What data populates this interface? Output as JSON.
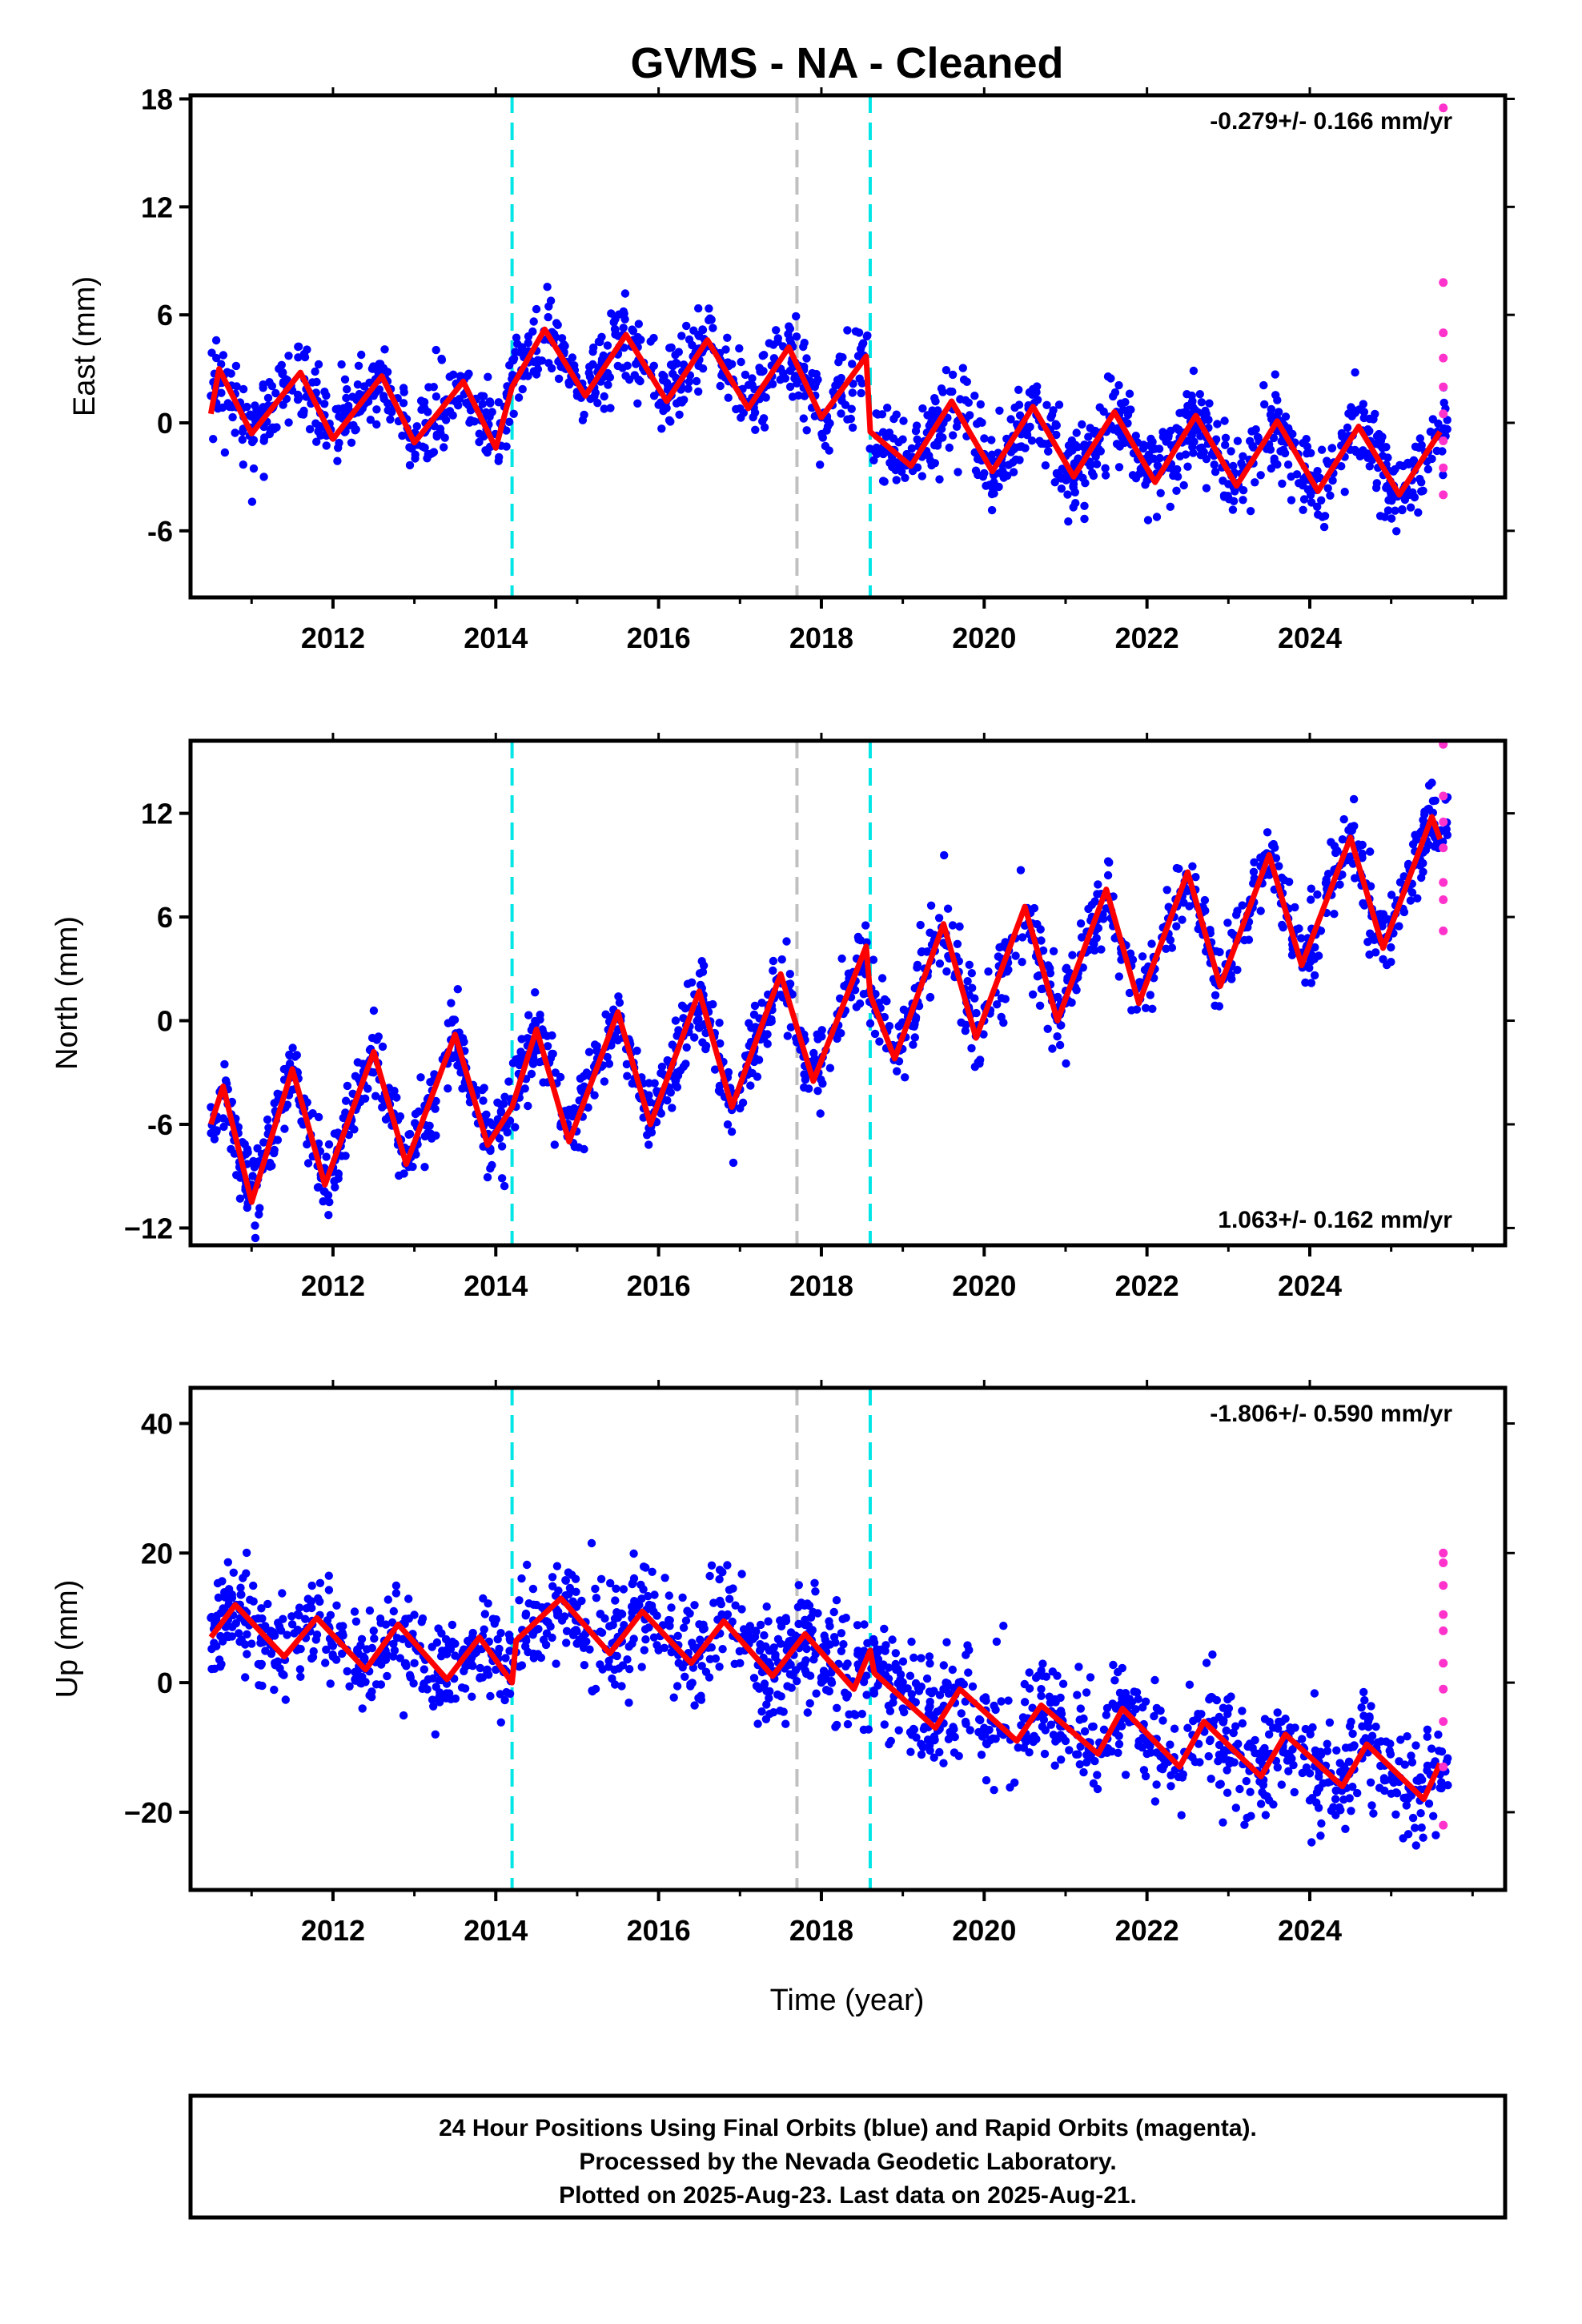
{
  "chart_data": [
    {
      "type": "scatter",
      "title": "GVMS  - NA - Cleaned",
      "component": "east",
      "ylabel": "East (mm)",
      "xlabel": "",
      "rate_text": "-0.279+/- 0.166 mm/yr",
      "rate_position": "top-right",
      "xlim": [
        2010.25,
        2026.4
      ],
      "ylim": [
        -9.7,
        18.2
      ],
      "xticks": [
        2012,
        2014,
        2016,
        2018,
        2020,
        2022,
        2024
      ],
      "xtick_labels": [
        "2012",
        "2014",
        "2016",
        "2018",
        "2020",
        "2022",
        "2024"
      ],
      "yticks": [
        18,
        12,
        6,
        0,
        -6
      ],
      "ytick_labels": [
        "18",
        "12",
        "6",
        "0",
        "-6"
      ],
      "grid": false,
      "series": [
        {
          "role": "final-orbits",
          "color": "#0000ff",
          "marker": "dot",
          "x": [
            2010.5,
            2011.0,
            2011.5,
            2012.0,
            2012.5,
            2013.0,
            2013.5,
            2014.0,
            2014.5,
            2015.0,
            2015.5,
            2016.0,
            2016.5,
            2017.0,
            2017.5,
            2018.0,
            2018.5,
            2019.0,
            2019.5,
            2020.0,
            2020.5,
            2021.0,
            2021.5,
            2022.0,
            2022.5,
            2023.0,
            2023.5,
            2024.0,
            2024.5,
            2025.0,
            2025.5
          ],
          "y": [
            1.5,
            -0.5,
            1.8,
            -0.8,
            1.5,
            -1.0,
            1.2,
            -1.2,
            4.0,
            1.5,
            3.8,
            1.0,
            3.5,
            0.8,
            3.0,
            0.3,
            2.2,
            -2.3,
            0.0,
            -2.8,
            -0.2,
            -3.0,
            -0.5,
            -3.2,
            -1.0,
            -3.4,
            -1.2,
            -3.8,
            -1.5,
            -4.0,
            -2.0
          ]
        },
        {
          "role": "model-fit",
          "color": "#ff0000",
          "x": [
            2010.5,
            2010.6,
            2011.0,
            2011.6,
            2012.0,
            2012.6,
            2013.0,
            2013.6,
            2014.0,
            2014.2,
            2014.6,
            2015.1,
            2015.6,
            2016.1,
            2016.6,
            2017.1,
            2017.6,
            2018.0,
            2018.55,
            2018.6,
            2019.1,
            2019.6,
            2020.1,
            2020.6,
            2021.1,
            2021.6,
            2022.1,
            2022.6,
            2023.1,
            2023.6,
            2024.1,
            2024.6,
            2025.1,
            2025.6
          ],
          "y": [
            0.5,
            3.0,
            -0.6,
            2.8,
            -0.9,
            2.6,
            -1.1,
            2.3,
            -1.4,
            2.0,
            5.2,
            1.5,
            4.9,
            1.2,
            4.6,
            0.8,
            4.2,
            0.3,
            3.7,
            -0.5,
            -2.4,
            1.2,
            -2.7,
            0.9,
            -3.0,
            0.6,
            -3.3,
            0.4,
            -3.5,
            0.1,
            -3.8,
            -0.2,
            -4.0,
            -0.5
          ]
        },
        {
          "role": "rapid-orbits",
          "color": "#ff33cc",
          "marker": "dot",
          "x": [
            2025.64,
            2025.64,
            2025.64,
            2025.64,
            2025.64,
            2025.64,
            2025.64,
            2025.64,
            2025.64
          ],
          "y": [
            17.5,
            7.8,
            5.0,
            3.6,
            2.0,
            0.5,
            -1.0,
            -2.5,
            -4.0
          ]
        }
      ],
      "vlines": [
        {
          "x": 2014.2,
          "color": "#00e5e5",
          "style": "dashed"
        },
        {
          "x": 2017.7,
          "color": "#c0c0c0",
          "style": "dashed"
        },
        {
          "x": 2018.6,
          "color": "#00e5e5",
          "style": "dashed"
        }
      ]
    },
    {
      "type": "scatter",
      "component": "north",
      "ylabel": "North (mm)",
      "xlabel": "",
      "rate_text": "1.063+/- 0.162 mm/yr",
      "rate_position": "bottom-right",
      "xlim": [
        2010.25,
        2026.4
      ],
      "ylim": [
        -13.0,
        16.2
      ],
      "xticks": [
        2012,
        2014,
        2016,
        2018,
        2020,
        2022,
        2024
      ],
      "xtick_labels": [
        "2012",
        "2014",
        "2016",
        "2018",
        "2020",
        "2022",
        "2024"
      ],
      "yticks": [
        12,
        6,
        0,
        -6,
        -12
      ],
      "ytick_labels": [
        "12",
        "6",
        "0",
        "-6",
        "−12"
      ],
      "grid": false,
      "series": [
        {
          "role": "final-orbits",
          "color": "#0000ff",
          "marker": "dot",
          "x": [
            2010.5,
            2011.0,
            2011.5,
            2012.0,
            2012.5,
            2013.0,
            2013.5,
            2014.0,
            2014.5,
            2015.0,
            2015.5,
            2016.0,
            2016.5,
            2017.0,
            2017.5,
            2018.0,
            2018.5,
            2019.0,
            2019.5,
            2020.0,
            2020.5,
            2021.0,
            2021.5,
            2022.0,
            2022.5,
            2023.0,
            2023.5,
            2024.0,
            2024.5,
            2025.0,
            2025.5
          ],
          "y": [
            -5.0,
            -9.5,
            -4.0,
            -8.5,
            -3.0,
            -7.5,
            -2.0,
            -6.5,
            -1.5,
            -5.5,
            -0.5,
            -5.0,
            0.5,
            -4.0,
            1.5,
            -2.5,
            3.0,
            -1.0,
            4.5,
            0.0,
            5.5,
            1.0,
            6.5,
            2.5,
            7.5,
            3.0,
            8.5,
            4.0,
            9.5,
            5.5,
            11.0
          ]
        },
        {
          "role": "model-fit",
          "color": "#ff0000",
          "x": [
            2010.5,
            2010.65,
            2011.0,
            2011.5,
            2011.9,
            2012.5,
            2012.9,
            2013.5,
            2013.9,
            2014.2,
            2014.5,
            2014.9,
            2015.5,
            2015.9,
            2016.5,
            2016.9,
            2017.5,
            2017.9,
            2018.55,
            2018.6,
            2018.9,
            2019.5,
            2019.9,
            2020.5,
            2020.9,
            2021.5,
            2021.9,
            2022.5,
            2022.9,
            2023.5,
            2023.9,
            2024.5,
            2024.9,
            2025.5,
            2025.6
          ],
          "y": [
            -6.0,
            -3.8,
            -10.5,
            -2.8,
            -9.5,
            -1.8,
            -8.3,
            -0.8,
            -7.2,
            -5.0,
            -0.5,
            -7.0,
            0.5,
            -6.0,
            1.7,
            -5.0,
            2.7,
            -3.5,
            4.3,
            1.5,
            -2.2,
            5.6,
            -1.0,
            6.6,
            0.0,
            7.6,
            1.0,
            8.6,
            2.0,
            9.6,
            3.2,
            10.6,
            4.2,
            11.8,
            10.5
          ]
        },
        {
          "role": "rapid-orbits",
          "color": "#ff33cc",
          "marker": "dot",
          "x": [
            2025.64,
            2025.64,
            2025.64,
            2025.64,
            2025.64,
            2025.64,
            2025.64
          ],
          "y": [
            16.0,
            13.0,
            11.5,
            10.0,
            8.0,
            7.0,
            5.2
          ]
        }
      ],
      "vlines": [
        {
          "x": 2014.2,
          "color": "#00e5e5",
          "style": "dashed"
        },
        {
          "x": 2017.7,
          "color": "#c0c0c0",
          "style": "dashed"
        },
        {
          "x": 2018.6,
          "color": "#00e5e5",
          "style": "dashed"
        }
      ]
    },
    {
      "type": "scatter",
      "component": "up",
      "ylabel": "Up (mm)",
      "xlabel": "Time (year)",
      "rate_text": "-1.806+/- 0.590 mm/yr",
      "rate_position": "top-right",
      "xlim": [
        2010.25,
        2026.4
      ],
      "ylim": [
        -32.0,
        45.5
      ],
      "xticks": [
        2012,
        2014,
        2016,
        2018,
        2020,
        2022,
        2024
      ],
      "xtick_labels": [
        "2012",
        "2014",
        "2016",
        "2018",
        "2020",
        "2022",
        "2024"
      ],
      "yticks": [
        40,
        20,
        0,
        -20
      ],
      "ytick_labels": [
        "40",
        "20",
        "0",
        "−20"
      ],
      "grid": false,
      "series": [
        {
          "role": "final-orbits",
          "color": "#0000ff",
          "marker": "dot",
          "x": [
            2010.5,
            2011.0,
            2011.5,
            2012.0,
            2012.5,
            2013.0,
            2013.5,
            2014.0,
            2014.5,
            2015.0,
            2015.5,
            2016.0,
            2016.5,
            2017.0,
            2017.5,
            2018.0,
            2018.5,
            2019.0,
            2019.5,
            2020.0,
            2020.5,
            2021.0,
            2021.5,
            2022.0,
            2022.5,
            2023.0,
            2023.5,
            2024.0,
            2024.5,
            2025.0,
            2025.5
          ],
          "y": [
            10.0,
            6.0,
            9.0,
            4.0,
            8.0,
            3.0,
            6.0,
            2.0,
            12.0,
            6.0,
            10.0,
            5.0,
            9.0,
            3.0,
            6.0,
            0.0,
            3.0,
            -4.0,
            -1.0,
            -7.0,
            -3.0,
            -9.0,
            -5.0,
            -11.0,
            -7.0,
            -12.0,
            -8.0,
            -14.0,
            -10.0,
            -15.0,
            -16.0
          ]
        },
        {
          "role": "model-fit",
          "color": "#ff0000",
          "x": [
            2010.5,
            2010.8,
            2011.4,
            2011.8,
            2012.4,
            2012.8,
            2013.4,
            2013.8,
            2014.2,
            2014.25,
            2014.8,
            2015.4,
            2015.8,
            2016.4,
            2016.8,
            2017.4,
            2017.8,
            2018.4,
            2018.6,
            2018.65,
            2019.4,
            2019.7,
            2020.4,
            2020.7,
            2021.4,
            2021.7,
            2022.4,
            2022.7,
            2023.4,
            2023.7,
            2024.4,
            2024.7,
            2025.4,
            2025.6
          ],
          "y": [
            7.0,
            12.0,
            4.0,
            10.0,
            2.0,
            9.0,
            0.5,
            7.0,
            0.0,
            6.5,
            13.0,
            4.5,
            11.0,
            3.0,
            9.5,
            1.0,
            7.5,
            -1.0,
            5.0,
            1.5,
            -7.0,
            -1.0,
            -9.0,
            -3.5,
            -11.0,
            -4.0,
            -13.0,
            -6.0,
            -14.5,
            -8.0,
            -16.0,
            -9.5,
            -18.0,
            -12.5
          ]
        },
        {
          "role": "rapid-orbits",
          "color": "#ff33cc",
          "marker": "dot",
          "x": [
            2025.64,
            2025.64,
            2025.64,
            2025.64,
            2025.64,
            2025.64,
            2025.64,
            2025.64,
            2025.64,
            2025.64
          ],
          "y": [
            20.0,
            18.5,
            15.0,
            10.5,
            8.0,
            3.0,
            -1.0,
            -6.0,
            -13.0,
            -22.0
          ]
        }
      ],
      "vlines": [
        {
          "x": 2014.2,
          "color": "#00e5e5",
          "style": "dashed"
        },
        {
          "x": 2017.7,
          "color": "#c0c0c0",
          "style": "dashed"
        },
        {
          "x": 2018.6,
          "color": "#00e5e5",
          "style": "dashed"
        }
      ]
    }
  ],
  "footer": {
    "lines": [
      "24 Hour Positions Using Final Orbits (blue) and Rapid Orbits (magenta).",
      "Processed by the Nevada Geodetic Laboratory.",
      "Plotted on 2025-Aug-23. Last data on 2025-Aug-21."
    ]
  }
}
